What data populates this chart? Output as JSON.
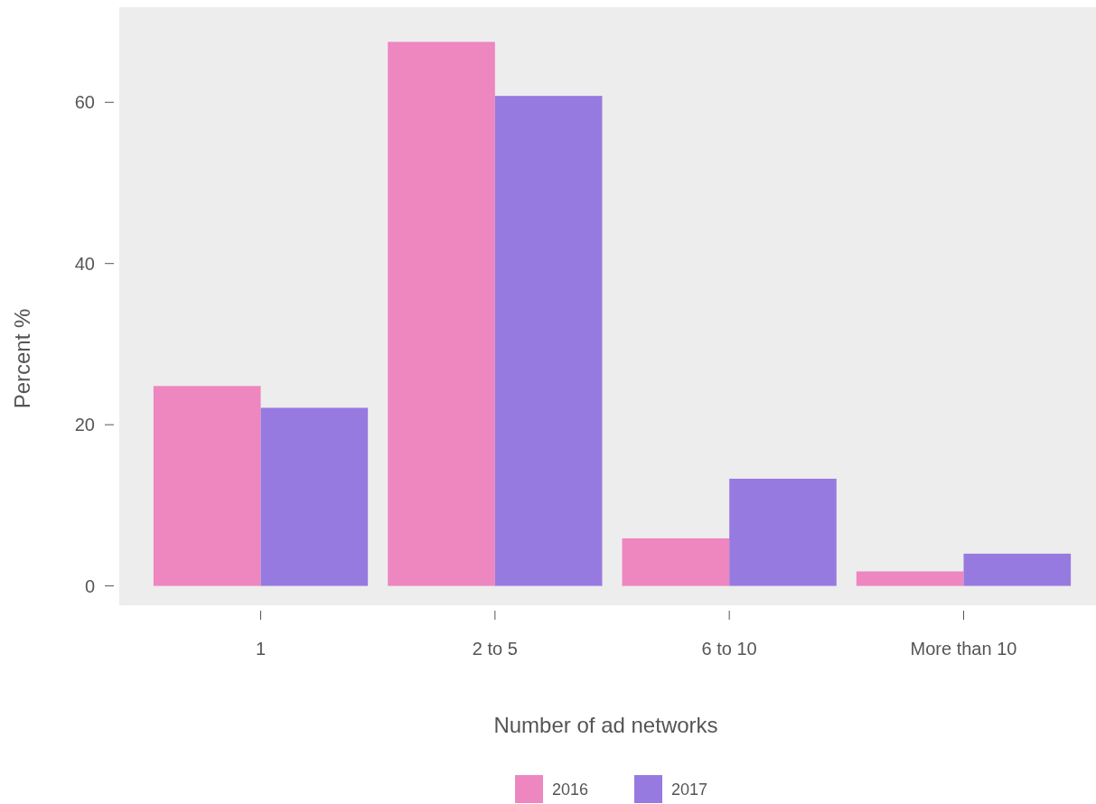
{
  "chart_data": {
    "type": "bar",
    "xlabel": "Number of ad networks",
    "ylabel": "Percent %",
    "categories": [
      "1",
      "2 to 5",
      "6 to 10",
      "More than 10"
    ],
    "series": [
      {
        "name": "2016",
        "color": "#ee86c0",
        "values": [
          24.8,
          67.5,
          5.9,
          1.8
        ]
      },
      {
        "name": "2017",
        "color": "#977ae0",
        "values": [
          22.1,
          60.8,
          13.3,
          4.0
        ]
      }
    ],
    "ylim": [
      -2.4,
      71.8
    ],
    "yticks": [
      0,
      20,
      40,
      60
    ],
    "grid": false,
    "legend": "bottom"
  }
}
